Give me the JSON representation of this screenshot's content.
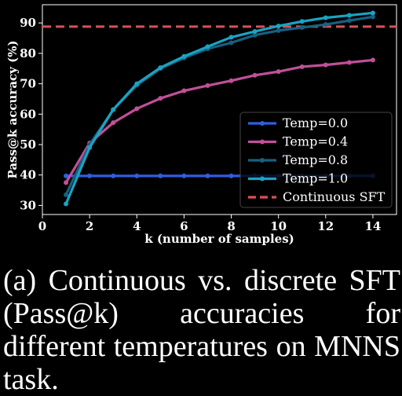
{
  "caption": "(a) Continuous vs. discrete SFT (Pass@k) accuracies for different temperatures on MNNS task.",
  "chart_data": {
    "type": "line",
    "title": "",
    "xlabel": "k (number of samples)",
    "ylabel": "Pass@k accuracy (%)",
    "xlim": [
      0,
      15
    ],
    "ylim": [
      27,
      96
    ],
    "xticks": [
      0,
      2,
      4,
      6,
      8,
      10,
      12,
      14
    ],
    "yticks": [
      30,
      40,
      50,
      60,
      70,
      80,
      90
    ],
    "grid": false,
    "legend_position": "lower-right",
    "x": [
      1,
      2,
      3,
      4,
      5,
      6,
      7,
      8,
      9,
      10,
      11,
      12,
      13,
      14
    ],
    "series": [
      {
        "name": "Temp=0.0",
        "color": "#2f5fe0",
        "values": [
          39.7,
          39.7,
          39.7,
          39.7,
          39.7,
          39.7,
          39.7,
          39.7,
          39.7,
          39.7,
          39.7,
          39.7,
          39.7,
          39.7
        ]
      },
      {
        "name": "Temp=0.4",
        "color": "#c0509a",
        "values": [
          37.5,
          50.5,
          57.2,
          61.8,
          65.2,
          67.7,
          69.4,
          71.0,
          72.8,
          74.0,
          75.6,
          76.2,
          77.0,
          77.8
        ]
      },
      {
        "name": "Temp=0.8",
        "color": "#17607f",
        "values": [
          33.5,
          50.0,
          61.5,
          69.5,
          75.0,
          78.5,
          81.5,
          83.5,
          86.0,
          87.5,
          88.5,
          89.5,
          90.8,
          92.0
        ]
      },
      {
        "name": "Temp=1.0",
        "color": "#1aa3c2",
        "values": [
          30.5,
          49.0,
          61.5,
          70.0,
          75.3,
          79.0,
          82.2,
          85.3,
          87.2,
          89.0,
          90.5,
          91.7,
          92.5,
          93.3
        ]
      }
    ],
    "reference_lines": [
      {
        "name": "Continuous SFT",
        "color": "#d9505a",
        "style": "dashed",
        "y": 88.8
      }
    ]
  }
}
